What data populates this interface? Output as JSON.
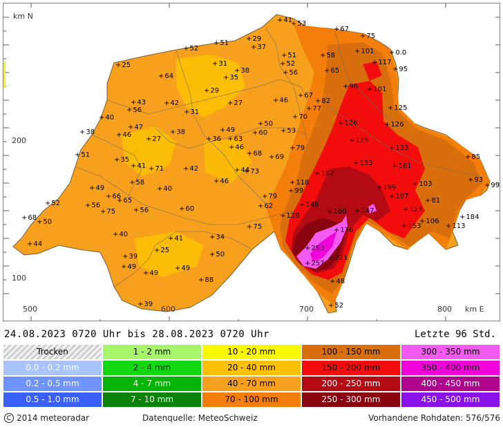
{
  "map": {
    "y_axis_label": "km N",
    "x_axis_label": "km E",
    "y_tick_200": "200",
    "y_tick_100": "100",
    "x_ticks": [
      "500",
      "600",
      "700",
      "800"
    ]
  },
  "caption": {
    "period": "24.08.2023 0720 Uhr  bis  28.08.2023 0720 Uhr",
    "window": "Letzte 96 Std."
  },
  "legend": [
    {
      "label": "Trocken",
      "color": "#e8e8e8",
      "style": "trocken"
    },
    {
      "label": "1 - 2 mm",
      "color": "#a6f56a"
    },
    {
      "label": "10 - 20 mm",
      "color": "#f8f800"
    },
    {
      "label": "100 - 150 mm",
      "color": "#d86e0c"
    },
    {
      "label": "300 - 350 mm",
      "color": "#f25af0"
    },
    {
      "label": "0.0 - 0.2 mm",
      "color": "#a9c3ff"
    },
    {
      "label": "2 - 4 mm",
      "color": "#12d812"
    },
    {
      "label": "20 - 40 mm",
      "color": "#fbc102"
    },
    {
      "label": "150 - 200 mm",
      "color": "#f20c0c"
    },
    {
      "label": "350 - 400 mm",
      "color": "#f003d8"
    },
    {
      "label": "0.2 - 0.5 mm",
      "color": "#6f93ff"
    },
    {
      "label": "4 - 7 mm",
      "color": "#05b505"
    },
    {
      "label": "40 - 70 mm",
      "color": "#f7a01e"
    },
    {
      "label": "200 - 250 mm",
      "color": "#b40a14"
    },
    {
      "label": "400 - 450 mm",
      "color": "#b0048f"
    },
    {
      "label": "0.5 - 1.0 mm",
      "color": "#3a60ff"
    },
    {
      "label": "7 - 10 mm",
      "color": "#088208"
    },
    {
      "label": "70 - 100 mm",
      "color": "#f37f0a"
    },
    {
      "label": "250 - 300 mm",
      "color": "#8a0410"
    },
    {
      "label": "450 - 500 mm",
      "color": "#8a12e8"
    }
  ],
  "footer": {
    "copyright": "2014  meteoradar",
    "source": "Datenquelle: MeteoSchweiz",
    "raw_data": "Vorhandene Rohdaten: 576/576"
  },
  "stations": [
    {
      "v": "41",
      "x": 400,
      "y": 25
    },
    {
      "v": "53",
      "x": 420,
      "y": 30
    },
    {
      "v": "67",
      "x": 482,
      "y": 38
    },
    {
      "v": "75",
      "x": 520,
      "y": 48
    },
    {
      "v": "29",
      "x": 355,
      "y": 52
    },
    {
      "v": "37",
      "x": 362,
      "y": 64
    },
    {
      "v": "51",
      "x": 308,
      "y": 58
    },
    {
      "v": "52",
      "x": 264,
      "y": 66
    },
    {
      "v": "58",
      "x": 462,
      "y": 76
    },
    {
      "v": "101",
      "x": 512,
      "y": 70
    },
    {
      "v": "0.0",
      "x": 562,
      "y": 72
    },
    {
      "v": "117",
      "x": 537,
      "y": 86
    },
    {
      "v": "95",
      "x": 567,
      "y": 96
    },
    {
      "v": "25",
      "x": 166,
      "y": 90
    },
    {
      "v": "31",
      "x": 306,
      "y": 88
    },
    {
      "v": "51",
      "x": 406,
      "y": 76
    },
    {
      "v": "52",
      "x": 404,
      "y": 88
    },
    {
      "v": "56",
      "x": 408,
      "y": 101
    },
    {
      "v": "65",
      "x": 468,
      "y": 98
    },
    {
      "v": "38",
      "x": 338,
      "y": 98
    },
    {
      "v": "35",
      "x": 322,
      "y": 108
    },
    {
      "v": "64",
      "x": 228,
      "y": 106
    },
    {
      "v": "96",
      "x": 495,
      "y": 121
    },
    {
      "v": "101",
      "x": 530,
      "y": 125
    },
    {
      "v": "29",
      "x": 294,
      "y": 127
    },
    {
      "v": "67",
      "x": 430,
      "y": 134
    },
    {
      "v": "82",
      "x": 455,
      "y": 142
    },
    {
      "v": "46",
      "x": 394,
      "y": 141
    },
    {
      "v": "77",
      "x": 442,
      "y": 153
    },
    {
      "v": "43",
      "x": 188,
      "y": 144
    },
    {
      "v": "42",
      "x": 236,
      "y": 145
    },
    {
      "v": "27",
      "x": 328,
      "y": 145
    },
    {
      "v": "56",
      "x": 182,
      "y": 155
    },
    {
      "v": "31",
      "x": 265,
      "y": 158
    },
    {
      "v": "125",
      "x": 560,
      "y": 152
    },
    {
      "v": "70",
      "x": 422,
      "y": 165
    },
    {
      "v": "40",
      "x": 142,
      "y": 166
    },
    {
      "v": "47",
      "x": 184,
      "y": 180
    },
    {
      "v": "126",
      "x": 488,
      "y": 174
    },
    {
      "v": "126",
      "x": 555,
      "y": 176
    },
    {
      "v": "50",
      "x": 372,
      "y": 175
    },
    {
      "v": "49",
      "x": 317,
      "y": 184
    },
    {
      "v": "53",
      "x": 405,
      "y": 185
    },
    {
      "v": "38",
      "x": 114,
      "y": 187
    },
    {
      "v": "46",
      "x": 167,
      "y": 191
    },
    {
      "v": "38",
      "x": 245,
      "y": 187
    },
    {
      "v": "60",
      "x": 364,
      "y": 188
    },
    {
      "v": "27",
      "x": 210,
      "y": 197
    },
    {
      "v": "36",
      "x": 297,
      "y": 197
    },
    {
      "v": "63",
      "x": 328,
      "y": 197
    },
    {
      "v": "125",
      "x": 504,
      "y": 199
    },
    {
      "v": "46",
      "x": 330,
      "y": 209
    },
    {
      "v": "79",
      "x": 418,
      "y": 210
    },
    {
      "v": "133",
      "x": 562,
      "y": 210
    },
    {
      "v": "51",
      "x": 107,
      "y": 220
    },
    {
      "v": "68",
      "x": 356,
      "y": 218
    },
    {
      "v": "69",
      "x": 388,
      "y": 223
    },
    {
      "v": "85",
      "x": 672,
      "y": 223
    },
    {
      "v": "35",
      "x": 164,
      "y": 227
    },
    {
      "v": "133",
      "x": 510,
      "y": 232
    },
    {
      "v": "161",
      "x": 566,
      "y": 236
    },
    {
      "v": "41",
      "x": 188,
      "y": 236
    },
    {
      "v": "71",
      "x": 214,
      "y": 240
    },
    {
      "v": "42",
      "x": 264,
      "y": 240
    },
    {
      "v": "44",
      "x": 338,
      "y": 242
    },
    {
      "v": "73",
      "x": 352,
      "y": 244
    },
    {
      "v": "152",
      "x": 454,
      "y": 247
    },
    {
      "v": "93",
      "x": 676,
      "y": 256
    },
    {
      "v": "46",
      "x": 308,
      "y": 258
    },
    {
      "v": "58",
      "x": 186,
      "y": 260
    },
    {
      "v": "118",
      "x": 418,
      "y": 260
    },
    {
      "v": "103",
      "x": 596,
      "y": 262
    },
    {
      "v": "99",
      "x": 700,
      "y": 264
    },
    {
      "v": "49",
      "x": 128,
      "y": 268
    },
    {
      "v": "40",
      "x": 226,
      "y": 269
    },
    {
      "v": "199",
      "x": 544,
      "y": 267
    },
    {
      "v": "99",
      "x": 416,
      "y": 272
    },
    {
      "v": "79",
      "x": 378,
      "y": 280
    },
    {
      "v": "197",
      "x": 562,
      "y": 280
    },
    {
      "v": "66",
      "x": 152,
      "y": 280
    },
    {
      "v": "81",
      "x": 614,
      "y": 286
    },
    {
      "v": "65",
      "x": 168,
      "y": 286
    },
    {
      "v": "52",
      "x": 64,
      "y": 290
    },
    {
      "v": "56",
      "x": 122,
      "y": 293
    },
    {
      "v": "62",
      "x": 372,
      "y": 294
    },
    {
      "v": "146",
      "x": 432,
      "y": 292
    },
    {
      "v": "75",
      "x": 144,
      "y": 302
    },
    {
      "v": "56",
      "x": 192,
      "y": 300
    },
    {
      "v": "60",
      "x": 258,
      "y": 298
    },
    {
      "v": "160",
      "x": 472,
      "y": 302
    },
    {
      "v": "147",
      "x": 512,
      "y": 301
    },
    {
      "v": "123",
      "x": 582,
      "y": 299
    },
    {
      "v": "68",
      "x": 30,
      "y": 311
    },
    {
      "v": "129",
      "x": 404,
      "y": 308
    },
    {
      "v": "184",
      "x": 664,
      "y": 310
    },
    {
      "v": "106",
      "x": 606,
      "y": 316
    },
    {
      "v": "50",
      "x": 52,
      "y": 317
    },
    {
      "v": "75",
      "x": 356,
      "y": 324
    },
    {
      "v": "153",
      "x": 580,
      "y": 323
    },
    {
      "v": "113",
      "x": 644,
      "y": 323
    },
    {
      "v": "176",
      "x": 482,
      "y": 329
    },
    {
      "v": "40",
      "x": 162,
      "y": 335
    },
    {
      "v": "41",
      "x": 242,
      "y": 341
    },
    {
      "v": "34",
      "x": 302,
      "y": 339
    },
    {
      "v": "44",
      "x": 38,
      "y": 349
    },
    {
      "v": "253",
      "x": 440,
      "y": 355
    },
    {
      "v": "25",
      "x": 222,
      "y": 358
    },
    {
      "v": "50",
      "x": 302,
      "y": 364
    },
    {
      "v": "39",
      "x": 176,
      "y": 367
    },
    {
      "v": "221",
      "x": 474,
      "y": 369
    },
    {
      "v": "257",
      "x": 440,
      "y": 377
    },
    {
      "v": "49",
      "x": 174,
      "y": 382
    },
    {
      "v": "49",
      "x": 252,
      "y": 384
    },
    {
      "v": "49",
      "x": 206,
      "y": 391
    },
    {
      "v": "88",
      "x": 286,
      "y": 401
    },
    {
      "v": "48",
      "x": 476,
      "y": 403
    },
    {
      "v": "39",
      "x": 198,
      "y": 436
    },
    {
      "v": "52",
      "x": 474,
      "y": 438
    }
  ]
}
